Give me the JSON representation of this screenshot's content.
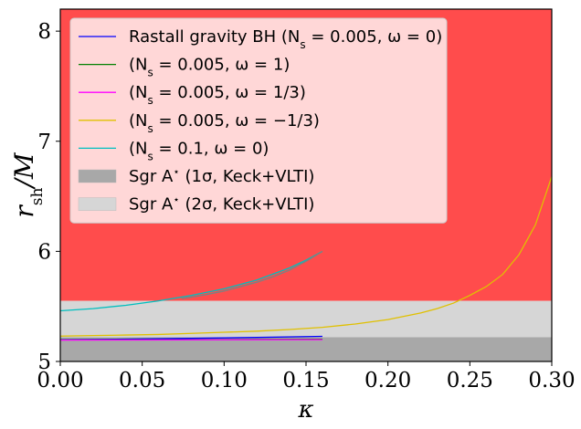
{
  "chart_data": {
    "type": "line",
    "title": "",
    "xlabel": "κ",
    "ylabel": "r_sh/M",
    "xlim": [
      0.0,
      0.3
    ],
    "ylim": [
      5.0,
      8.2
    ],
    "xticks": [
      0.0,
      0.05,
      0.1,
      0.15,
      0.2,
      0.25,
      0.3
    ],
    "xtick_labels": [
      "0.00",
      "0.05",
      "0.10",
      "0.15",
      "0.20",
      "0.25",
      "0.30"
    ],
    "yticks": [
      5,
      6,
      7,
      8
    ],
    "ytick_labels": [
      "5",
      "6",
      "7",
      "8"
    ],
    "grid": false,
    "legend_position": "top-left",
    "regions": [
      {
        "name": "excluded",
        "y": [
          5.55,
          8.2
        ],
        "color": "#ff4c4c",
        "in_legend": false
      },
      {
        "name": "Sgr A* (2σ, Keck+VLTI)",
        "y": [
          5.22,
          5.55
        ],
        "color": "#d6d6d6",
        "in_legend": true
      },
      {
        "name": "Sgr A* (1σ, Keck+VLTI)",
        "y": [
          5.0,
          5.22
        ],
        "color": "#a8a8a8",
        "in_legend": true
      }
    ],
    "series": [
      {
        "name": "Rastall gravity BH (Ns = 0.005, ω = 0)",
        "color": "#0000ff",
        "x": [
          0.0,
          0.04,
          0.08,
          0.12,
          0.16
        ],
        "y": [
          5.198,
          5.203,
          5.21,
          5.218,
          5.228
        ]
      },
      {
        "name": "(Ns = 0.005, ω = 1)",
        "color": "#008000",
        "x": [
          0.0,
          0.04,
          0.08,
          0.12,
          0.16
        ],
        "y": [
          5.196,
          5.197,
          5.198,
          5.2,
          5.202
        ]
      },
      {
        "name": "(Ns = 0.005, ω = 1/3)",
        "color": "#ff00ff",
        "x": [
          0.0,
          0.04,
          0.08,
          0.12,
          0.16
        ],
        "y": [
          5.194,
          5.195,
          5.196,
          5.197,
          5.198
        ]
      },
      {
        "name": "(Ns = 0.005, ω = −1/3)",
        "color": "#e0c000",
        "x": [
          0.0,
          0.02,
          0.04,
          0.06,
          0.08,
          0.1,
          0.12,
          0.14,
          0.16,
          0.18,
          0.2,
          0.21,
          0.22,
          0.23,
          0.24,
          0.25,
          0.26,
          0.27,
          0.28,
          0.29,
          0.3
        ],
        "y": [
          5.23,
          5.235,
          5.24,
          5.245,
          5.255,
          5.265,
          5.275,
          5.29,
          5.31,
          5.34,
          5.38,
          5.41,
          5.44,
          5.48,
          5.53,
          5.6,
          5.68,
          5.79,
          5.97,
          6.24,
          6.68
        ]
      },
      {
        "name": "(Ns = 0.1, ω = 0)",
        "color": "#00bfbf",
        "x": [
          0.0,
          0.02,
          0.04,
          0.06,
          0.08,
          0.1,
          0.12,
          0.14,
          0.15,
          0.16
        ],
        "y": [
          5.46,
          5.48,
          5.51,
          5.55,
          5.6,
          5.66,
          5.74,
          5.85,
          5.92,
          6.0
        ]
      }
    ],
    "overlay": {
      "name": "gray overlay",
      "color": "#808080",
      "x": [
        0.074,
        0.09,
        0.1,
        0.11,
        0.12,
        0.13,
        0.14,
        0.15,
        0.16
      ],
      "y": [
        5.57,
        5.61,
        5.64,
        5.68,
        5.72,
        5.77,
        5.83,
        5.91,
        6.0
      ]
    },
    "legend": {
      "entries": [
        {
          "kind": "line",
          "color": "#0000ff",
          "text": "Rastall gravity BH (N",
          "sub": "s",
          "rest": " = 0.005, ω = 0)"
        },
        {
          "kind": "line",
          "color": "#008000",
          "text": "(N",
          "sub": "s",
          "rest": " = 0.005, ω = 1)"
        },
        {
          "kind": "line",
          "color": "#ff00ff",
          "text": "(N",
          "sub": "s",
          "rest": " = 0.005, ω = 1/3)"
        },
        {
          "kind": "line",
          "color": "#e0c000",
          "text": "(N",
          "sub": "s",
          "rest": " = 0.005, ω = −1/3)"
        },
        {
          "kind": "line",
          "color": "#00bfbf",
          "text": "(N",
          "sub": "s",
          "rest": " = 0.1, ω = 0)"
        },
        {
          "kind": "patch",
          "color": "#a8a8a8",
          "text": "Sgr A",
          "sup": "⋆",
          "rest": " (1σ, Keck+VLTI)"
        },
        {
          "kind": "patch",
          "color": "#d6d6d6",
          "text": "Sgr A",
          "sup": "⋆",
          "rest": " (2σ, Keck+VLTI)"
        }
      ]
    }
  }
}
